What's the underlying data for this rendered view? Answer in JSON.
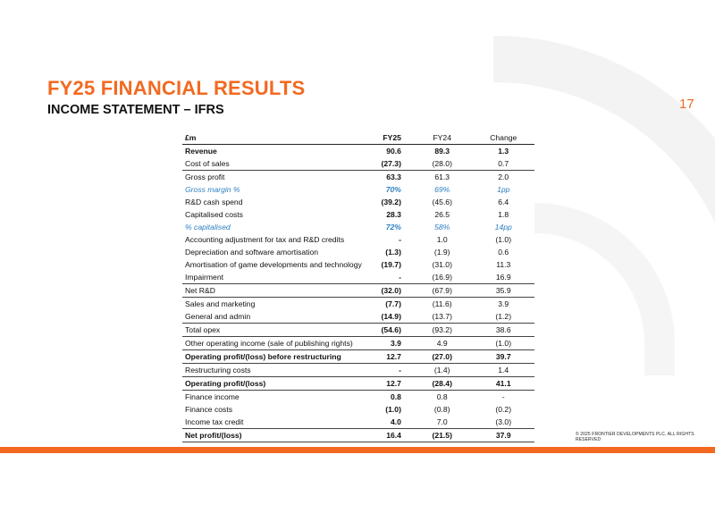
{
  "header": {
    "title": "FY25 FINANCIAL RESULTS",
    "subtitle": "INCOME STATEMENT – IFRS",
    "page_number": "17"
  },
  "table": {
    "columns": [
      "£m",
      "FY25",
      "FY24",
      "Change"
    ],
    "rows": [
      {
        "label": "Revenue",
        "fy25": "90.6",
        "fy24": "89.3",
        "change": "1.3",
        "bold": true
      },
      {
        "label": "Cost of sales",
        "fy25": "(27.3)",
        "fy24": "(28.0)",
        "change": "0.7"
      },
      {
        "label": "Gross profit",
        "fy25": "63.3",
        "fy24": "61.3",
        "change": "2.0",
        "border_top": true
      },
      {
        "label": "Gross margin %",
        "fy25": "70%",
        "fy24": "69%",
        "change": "1pp",
        "percent": true
      },
      {
        "label": "R&D cash spend",
        "fy25": "(39.2)",
        "fy24": "(45.6)",
        "change": "6.4"
      },
      {
        "label": "Capitalised costs",
        "fy25": "28.3",
        "fy24": "26.5",
        "change": "1.8"
      },
      {
        "label": "% capitalised",
        "fy25": "72%",
        "fy24": "58%",
        "change": "14pp",
        "percent": true
      },
      {
        "label": "Accounting adjustment for tax and R&D credits",
        "fy25": "-",
        "fy24": "1.0",
        "change": "(1.0)"
      },
      {
        "label": "Depreciation and software amortisation",
        "fy25": "(1.3)",
        "fy24": "(1.9)",
        "change": "0.6"
      },
      {
        "label": "Amortisation of game developments and technology",
        "fy25": "(19.7)",
        "fy24": "(31.0)",
        "change": "11.3"
      },
      {
        "label": "Impairment",
        "fy25": "-",
        "fy24": "(16.9)",
        "change": "16.9"
      },
      {
        "label": "Net R&D",
        "fy25": "(32.0)",
        "fy24": "(67.9)",
        "change": "35.9",
        "border_top": true
      },
      {
        "label": "Sales and marketing",
        "fy25": "(7.7)",
        "fy24": "(11.6)",
        "change": "3.9",
        "border_top": true
      },
      {
        "label": "General and admin",
        "fy25": "(14.9)",
        "fy24": "(13.7)",
        "change": "(1.2)"
      },
      {
        "label": "Total opex",
        "fy25": "(54.6)",
        "fy24": "(93.2)",
        "change": "38.6",
        "border_top": true
      },
      {
        "label": "Other operating income (sale of publishing rights)",
        "fy25": "3.9",
        "fy24": "4.9",
        "change": "(1.0)",
        "border_top": true
      },
      {
        "label": "Operating profit/(loss) before restructuring",
        "fy25": "12.7",
        "fy24": "(27.0)",
        "change": "39.7",
        "bold": true,
        "border_top": true
      },
      {
        "label": "Restructuring costs",
        "fy25": "-",
        "fy24": "(1.4)",
        "change": "1.4",
        "border_top": true
      },
      {
        "label": "Operating profit/(loss)",
        "fy25": "12.7",
        "fy24": "(28.4)",
        "change": "41.1",
        "bold": true,
        "border_top": true
      },
      {
        "label": "Finance income",
        "fy25": "0.8",
        "fy24": "0.8",
        "change": "-",
        "border_top": true
      },
      {
        "label": "Finance costs",
        "fy25": "(1.0)",
        "fy24": "(0.8)",
        "change": "(0.2)"
      },
      {
        "label": "Income tax credit",
        "fy25": "4.0",
        "fy24": "7.0",
        "change": "(3.0)"
      },
      {
        "label": "Net profit/(loss)",
        "fy25": "16.4",
        "fy24": "(21.5)",
        "change": "37.9",
        "bold": true,
        "border_top": true,
        "last": true
      }
    ]
  },
  "footer": {
    "copyright": "© 2025 FRONTIER DEVELOPMENTS PLC. ALL RIGHTS RESERVED"
  },
  "colors": {
    "accent": "#f26a21",
    "percent_rows": "#2e7fc1",
    "watermark": "#f2f2f2"
  }
}
